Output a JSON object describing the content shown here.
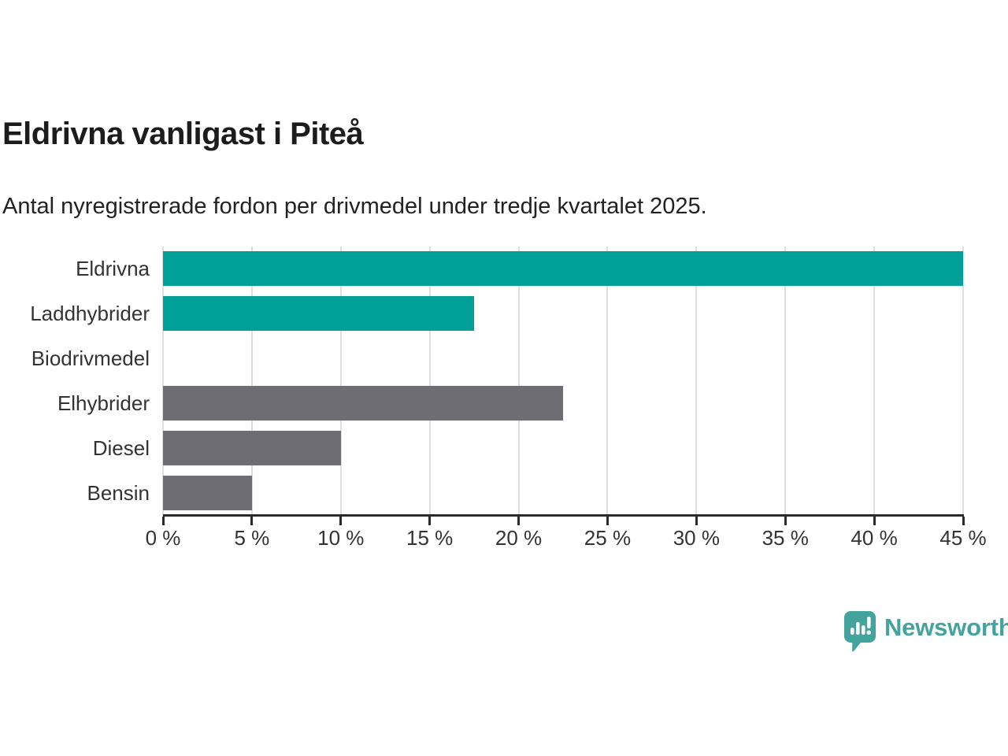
{
  "header": {
    "title": "Eldrivna vanligast i Piteå",
    "subtitle": "Antal nyregistrerade fordon per drivmedel under tredje kvartalet 2025."
  },
  "branding": {
    "logo_text": "Newsworthy",
    "logo_color": "#45a39d",
    "logo_icon": "bar-chart-speech-bubble"
  },
  "colors": {
    "teal_bar": "#00a099",
    "gray_bar": "#6e6d73",
    "gridline": "#dedede",
    "axis": "#2b2b2b",
    "tick_text": "#333333",
    "title_text": "#1c1c1c"
  },
  "chart_data": {
    "type": "bar",
    "orientation": "horizontal",
    "title": "Eldrivna vanligast i Piteå",
    "subtitle": "Antal nyregistrerade fordon per drivmedel under tredje kvartalet 2025.",
    "categories": [
      "Eldrivna",
      "Laddhybrider",
      "Biodrivmedel",
      "Elhybrider",
      "Diesel",
      "Bensin"
    ],
    "values": [
      45,
      17.5,
      0,
      22.5,
      10,
      5
    ],
    "unit": "%",
    "bar_colors": [
      "#00a099",
      "#00a099",
      null,
      "#6e6d73",
      "#6e6d73",
      "#6e6d73"
    ],
    "xlabel": "",
    "ylabel": "",
    "xlim": [
      0,
      45
    ],
    "x_ticks": [
      0,
      5,
      10,
      15,
      20,
      25,
      30,
      35,
      40,
      45
    ],
    "x_tick_labels": [
      "0 %",
      "5 %",
      "10 %",
      "15 %",
      "20 %",
      "25 %",
      "30 %",
      "35 %",
      "40 %",
      "45 %"
    ],
    "grid": "vertical",
    "legend": "none"
  }
}
